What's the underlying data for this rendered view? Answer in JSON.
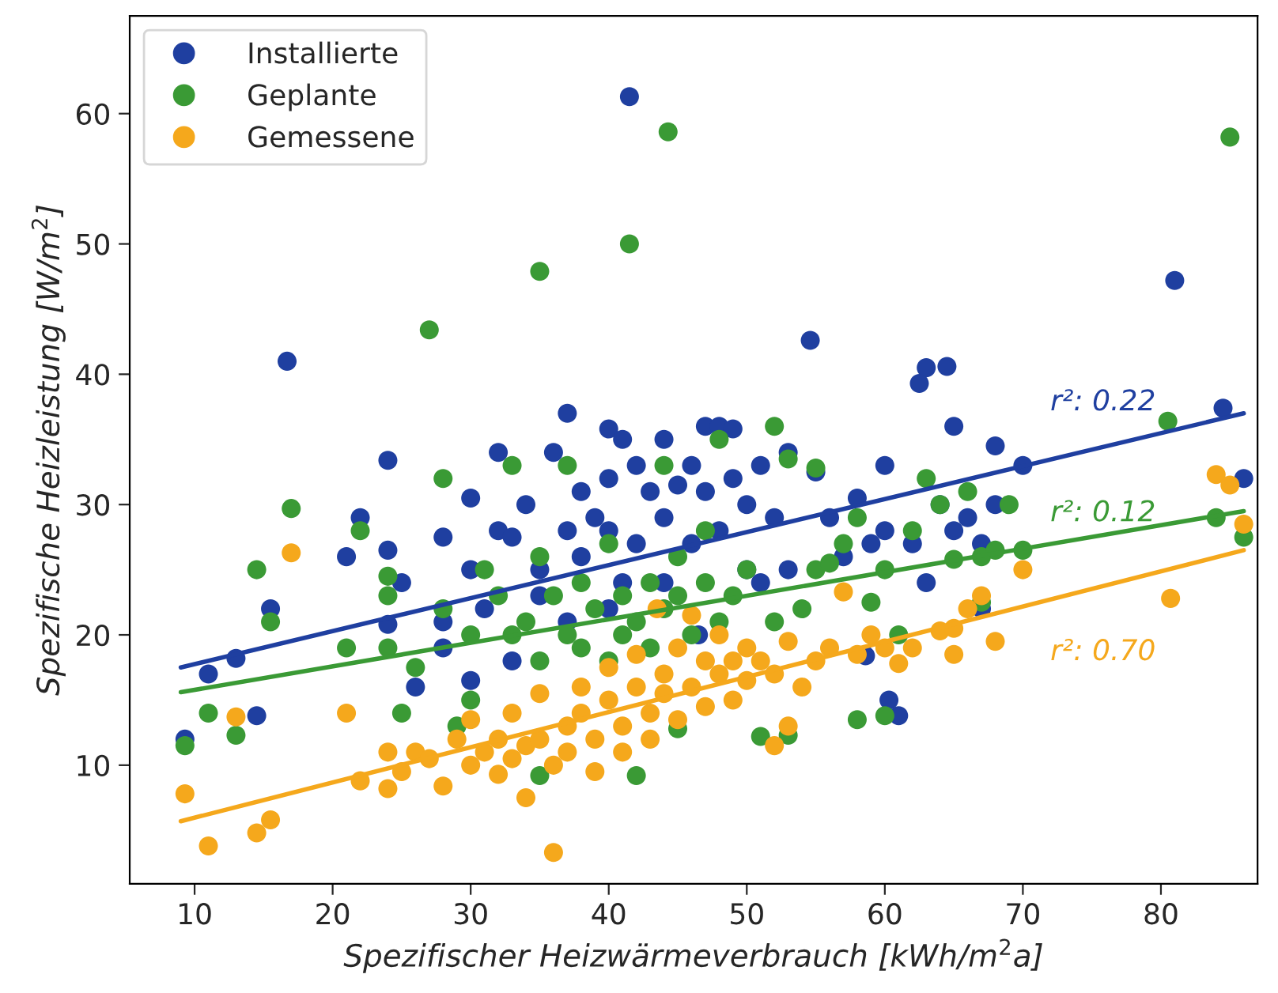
{
  "chart_data": {
    "type": "scatter",
    "xlabel": "Spezifischer Heizwärmeverbrauch [kWh/m$^{2}$a]",
    "ylabel": "Spezifische Heizleistung [W/m$^{2}$]",
    "xlim": [
      5.3,
      87
    ],
    "ylim": [
      0.9,
      67.5
    ],
    "xticks": [
      10,
      20,
      30,
      40,
      50,
      60,
      70,
      80
    ],
    "yticks": [
      10,
      20,
      30,
      40,
      50,
      60
    ],
    "grid": false,
    "legend": "top left",
    "marker": "circle",
    "series": [
      {
        "name": "Installierte",
        "color": "#1f3fa0",
        "x": [
          41.5,
          16.7,
          54.6,
          81,
          84.5,
          86,
          63,
          64.5,
          65,
          62.5,
          60,
          61,
          9.3,
          11,
          13,
          14.5,
          15.5,
          21,
          22,
          24,
          24,
          24,
          26,
          25,
          28,
          28,
          30,
          30,
          31,
          32,
          32,
          33,
          34,
          35,
          36,
          37,
          37,
          38,
          38,
          39,
          40,
          40,
          40,
          41,
          41,
          42,
          42,
          43,
          44,
          44,
          45,
          46,
          46,
          47,
          47,
          48,
          48,
          49,
          49,
          50,
          50,
          51,
          52,
          53,
          53,
          55,
          56,
          57,
          58,
          59,
          60,
          62,
          64,
          65,
          66,
          67,
          68,
          68,
          70,
          63,
          67,
          46.5,
          40,
          35,
          30,
          33,
          44,
          51,
          58.6,
          60.3,
          28,
          37
        ],
        "values": [
          61.3,
          41,
          42.6,
          47.2,
          37.4,
          32,
          40.5,
          40.6,
          36,
          39.3,
          33,
          13.8,
          12,
          17,
          18.2,
          13.8,
          22,
          26,
          29,
          33.4,
          26.5,
          20.8,
          16,
          24,
          27.5,
          19,
          30.5,
          25,
          22,
          34,
          28,
          27.5,
          30,
          25,
          34,
          37,
          28,
          26,
          31,
          29,
          35.8,
          32,
          28,
          35,
          24,
          33,
          27,
          31,
          35,
          29,
          31.5,
          27,
          33,
          36,
          31,
          36,
          28,
          32,
          35.8,
          30,
          25,
          33,
          29,
          34,
          25,
          32.5,
          29,
          26,
          30.5,
          27,
          28,
          27,
          30,
          28,
          29,
          27,
          34.5,
          30,
          33,
          24,
          22,
          20,
          22,
          23,
          16.5,
          18,
          24,
          24,
          18.4,
          15,
          21,
          21
        ]
      },
      {
        "name": "Geplante",
        "color": "#3a9a35",
        "x": [
          44.3,
          41.5,
          35,
          27,
          85,
          80.5,
          84,
          86,
          17,
          14.5,
          15.5,
          9.3,
          11,
          13,
          21,
          22,
          24,
          24,
          24,
          25,
          26,
          28,
          28,
          29,
          30,
          30,
          31,
          32,
          33,
          33,
          34,
          35,
          35,
          36,
          37,
          37,
          38,
          38,
          39,
          40,
          40,
          41,
          41,
          42,
          42,
          43,
          43,
          44,
          44,
          45,
          45,
          46,
          47,
          47,
          48,
          48,
          49,
          50,
          51,
          52,
          52,
          53,
          54,
          55,
          55,
          56,
          57,
          58,
          58,
          59,
          60,
          60,
          61,
          62,
          63,
          64,
          65,
          66,
          67,
          67,
          68,
          69,
          70,
          35,
          45,
          53
        ],
        "values": [
          58.6,
          50,
          47.9,
          43.4,
          58.2,
          36.4,
          29,
          27.5,
          29.7,
          25,
          21,
          11.5,
          14,
          12.3,
          19,
          28,
          24.5,
          23,
          19,
          14,
          17.5,
          32,
          22,
          13,
          20,
          15,
          25,
          23,
          20,
          33,
          21,
          18,
          26,
          23,
          33,
          20,
          24,
          19,
          22,
          27,
          18,
          23,
          20,
          21,
          9.2,
          24,
          19,
          33,
          22,
          23,
          26,
          20,
          24,
          28,
          21,
          35,
          23,
          25,
          12.2,
          36,
          21,
          33.5,
          22,
          32.8,
          25,
          25.5,
          27,
          13.5,
          29,
          22.5,
          25,
          13.8,
          20,
          28,
          32,
          30,
          25.8,
          31,
          26,
          22.5,
          26.5,
          30,
          26.5,
          9.2,
          12.8,
          12.3
        ]
      },
      {
        "name": "Gemessene",
        "color": "#f5a81c",
        "x": [
          9.3,
          11,
          14.5,
          15.5,
          17,
          13,
          21,
          22,
          24,
          24,
          25,
          26,
          27,
          28,
          29,
          30,
          30,
          31,
          32,
          32,
          33,
          33,
          34,
          34,
          35,
          35,
          36,
          36,
          37,
          37,
          38,
          38,
          39,
          39,
          40,
          40,
          41,
          41,
          42,
          42,
          43,
          43,
          44,
          44,
          45,
          45,
          46,
          46,
          47,
          47,
          48,
          48,
          49,
          49,
          50,
          50,
          51,
          52,
          53,
          54,
          55,
          56,
          58,
          59,
          60,
          61,
          62,
          64,
          65,
          66,
          67,
          68,
          70,
          80.7,
          84,
          85,
          86,
          43.5,
          57,
          65,
          53,
          52
        ],
        "values": [
          7.8,
          3.8,
          4.8,
          5.8,
          26.3,
          13.7,
          14,
          8.8,
          11,
          8.2,
          9.5,
          11,
          10.5,
          8.4,
          12,
          10,
          13.5,
          11,
          9.3,
          12,
          10.5,
          14,
          11.5,
          7.5,
          12,
          15.5,
          3.3,
          10,
          13,
          11,
          14,
          16,
          12,
          9.5,
          15,
          17.5,
          13,
          11,
          16,
          18.5,
          14,
          12,
          17,
          15.5,
          19,
          13.5,
          16,
          21.5,
          18,
          14.5,
          17,
          20,
          15,
          18,
          19,
          16.5,
          18,
          17,
          19.5,
          16,
          18,
          19,
          18.5,
          20,
          19,
          17.8,
          19,
          20.3,
          18.5,
          22,
          23,
          19.5,
          25,
          22.8,
          32.3,
          31.5,
          28.5,
          22,
          23.3,
          20.5,
          13,
          11.5
        ]
      },
      {
        "type": "line",
        "marker": "none",
        "color": "#1f3fa0",
        "x": [
          9,
          86
        ],
        "values": [
          17.5,
          37
        ]
      },
      {
        "type": "line",
        "marker": "none",
        "color": "#3a9a35",
        "x": [
          9,
          86
        ],
        "values": [
          15.6,
          29.5
        ]
      },
      {
        "type": "line",
        "marker": "none",
        "color": "#f5a81c",
        "x": [
          9,
          86
        ],
        "values": [
          5.7,
          26.5
        ]
      }
    ],
    "annotations": [
      "r²: 0.22",
      "r²: 0.12",
      "r²: 0.70"
    ]
  }
}
